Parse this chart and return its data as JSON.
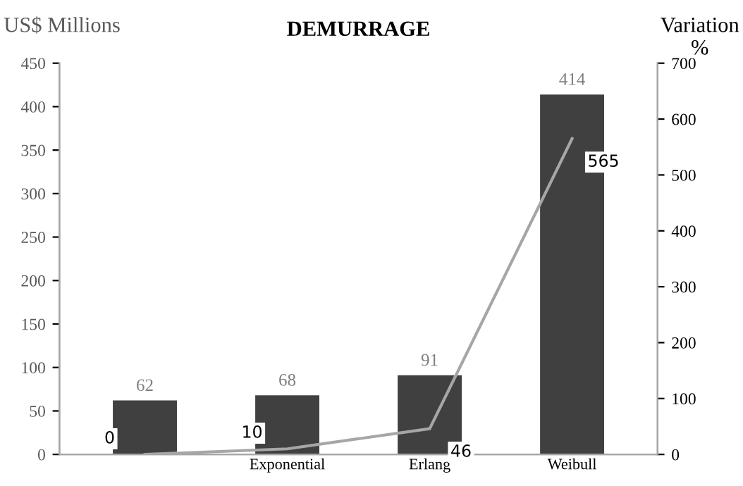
{
  "chart_data": {
    "type": "bar",
    "title": "DEMURRAGE",
    "ylabel": "US$ Millions",
    "y2label": "Variation\n%",
    "categories": [
      null,
      "Exponential",
      "Erlang",
      "Weibull"
    ],
    "series": [
      {
        "color": "#404040",
        "values": [
          62,
          68,
          91,
          414
        ]
      },
      {
        "type": "line",
        "axis": "y2",
        "color": "#a6a6a6",
        "values": [
          0,
          10,
          46,
          565
        ]
      }
    ],
    "ylim": [
      0,
      450
    ],
    "yticks": [
      0,
      50,
      100,
      150,
      200,
      250,
      300,
      350,
      400,
      450
    ],
    "y2lim": [
      0,
      700
    ],
    "y2ticks": [
      0,
      100,
      200,
      300,
      400,
      500,
      600,
      700
    ],
    "data_labels": true,
    "grid": false,
    "marker": "none",
    "line_style": "solid"
  }
}
